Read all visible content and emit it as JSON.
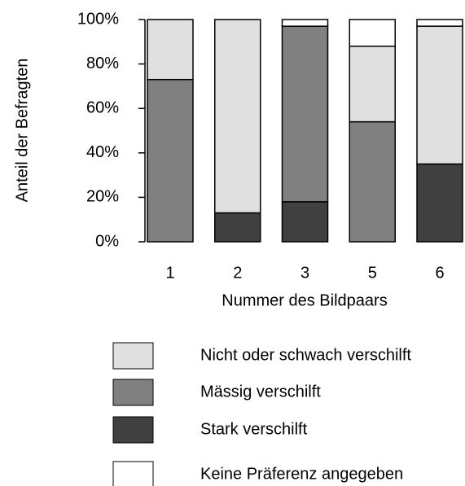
{
  "chart_data": {
    "type": "stacked_bar",
    "x_label": "Nummer des Bildpaars",
    "y_label": "Anteil der Befragten",
    "categories": [
      "1",
      "2",
      "3",
      "5",
      "6"
    ],
    "series": [
      {
        "name": "Nicht oder schwach verschilft",
        "color": "#e0e0e0",
        "values": [
          27,
          87,
          0,
          34,
          62
        ]
      },
      {
        "name": "Mässig verschilft",
        "color": "#808080",
        "values": [
          73,
          0,
          79,
          54,
          0
        ]
      },
      {
        "name": "Stark verschilft",
        "color": "#404040",
        "values": [
          0,
          13,
          18,
          0,
          35
        ]
      },
      {
        "name": "Keine Präferenz angegeben",
        "color": "#ffffff",
        "values": [
          0,
          0,
          3,
          12,
          3
        ]
      }
    ],
    "ylim": [
      0,
      100
    ],
    "yticks": [
      {
        "value": 0,
        "label": "0%"
      },
      {
        "value": 20,
        "label": "20%"
      },
      {
        "value": 40,
        "label": "40%"
      },
      {
        "value": 60,
        "label": "60%"
      },
      {
        "value": 80,
        "label": "80%"
      },
      {
        "value": 100,
        "label": "100%"
      }
    ]
  }
}
